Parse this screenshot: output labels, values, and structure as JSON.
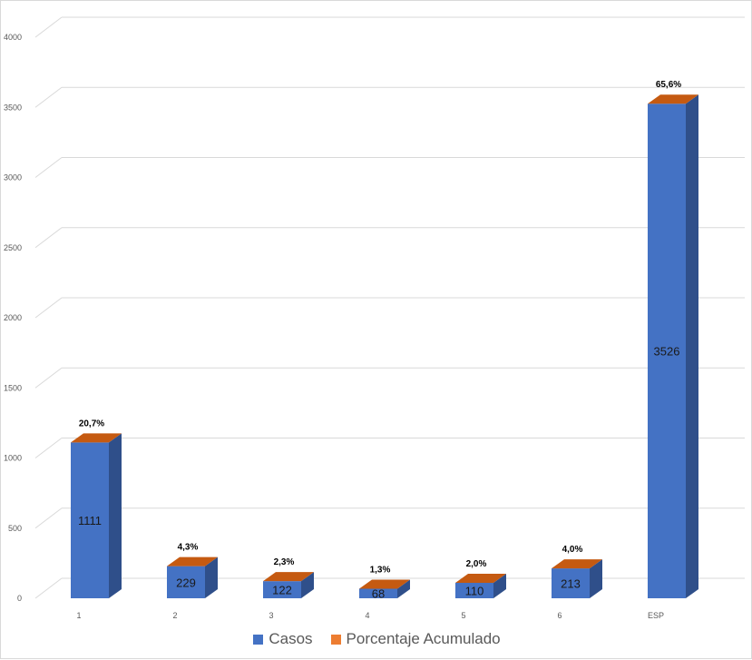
{
  "chart_data": {
    "type": "bar",
    "categories": [
      "1",
      "2",
      "3",
      "4",
      "5",
      "6",
      "ESP"
    ],
    "series": [
      {
        "name": "Casos",
        "values": [
          1111,
          229,
          122,
          68,
          110,
          213,
          3526
        ],
        "color": "#4472C4"
      },
      {
        "name": "Porcentaje Acumulado",
        "values": [
          "20,7%",
          "4,3%",
          "2,3%",
          "1,3%",
          "2,0%",
          "4,0%",
          "65,6%"
        ],
        "color": "#ED7D31"
      }
    ],
    "ylim": [
      0,
      4000
    ],
    "yticks": [
      0,
      500,
      1000,
      1500,
      2000,
      2500,
      3000,
      3500,
      4000
    ],
    "grid": true,
    "legend": "bottom",
    "three_d": true
  }
}
